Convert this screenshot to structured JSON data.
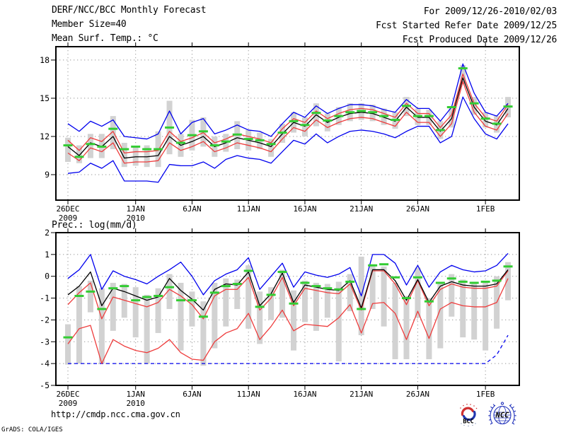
{
  "header": {
    "left": [
      "DERF/NCC/BCC Monthly Forecast",
      "Member Size=40"
    ],
    "right": [
      "For 2009/12/26-2010/02/03",
      "Fcst Started Refer Date 2009/12/25",
      "Fcst Produced Date 2009/12/26"
    ]
  },
  "footer": {
    "url": "http://cmdp.ncc.cma.gov.cn",
    "credit": "GrADS: COLA/IGES"
  },
  "logos": {
    "bcc_label": "BCC",
    "ncc_label": "NCC"
  },
  "colors": {
    "ensemble_max_min": "#0000ee",
    "spread_band": "#ee3c3c",
    "ensemble_mean": "#000000",
    "observation_dash": "#33cc33",
    "member_bar": "#d2d2d2",
    "grid": "#999999"
  },
  "chart_data": [
    {
      "name": "mean-surface-temperature",
      "type": "line",
      "label": "Mean Surf. Temp.: °C",
      "unit": "°C",
      "x": {
        "days": 40,
        "start": "26DEC2009",
        "end": "3FEB2010",
        "ticks": [
          {
            "day": 0,
            "label": "26DEC",
            "sublabel": "2009"
          },
          {
            "day": 6,
            "label": "1JAN",
            "sublabel": "2010"
          },
          {
            "day": 11,
            "label": "6JAN"
          },
          {
            "day": 16,
            "label": "11JAN"
          },
          {
            "day": 21,
            "label": "16JAN"
          },
          {
            "day": 26,
            "label": "21JAN"
          },
          {
            "day": 31,
            "label": "26JAN"
          },
          {
            "day": 37,
            "label": "1FEB"
          }
        ]
      },
      "y": {
        "min": 7,
        "max": 19.05,
        "tick_labels": [
          18,
          15,
          12,
          9
        ],
        "grid": [
          18,
          15,
          12,
          9
        ]
      },
      "bars": {
        "name": "member-spread-bar",
        "ranges": [
          [
            10.0,
            11.9
          ],
          [
            9.9,
            11.3
          ],
          [
            10.3,
            12.2
          ],
          [
            10.3,
            12.2
          ],
          [
            11.0,
            13.6
          ],
          [
            9.6,
            11.5
          ],
          [
            9.7,
            11.2
          ],
          [
            9.6,
            11.3
          ],
          [
            9.6,
            12.4
          ],
          [
            10.6,
            14.8
          ],
          [
            10.4,
            12.2
          ],
          [
            10.9,
            13.3
          ],
          [
            11.2,
            13.5
          ],
          [
            10.4,
            12.0
          ],
          [
            10.8,
            12.2
          ],
          [
            11.0,
            13.2
          ],
          [
            10.9,
            12.5
          ],
          [
            11.0,
            12.3
          ],
          [
            10.4,
            11.8
          ],
          [
            11.5,
            13.0
          ],
          [
            12.3,
            13.9
          ],
          [
            12.0,
            13.5
          ],
          [
            12.8,
            14.6
          ],
          [
            12.4,
            13.8
          ],
          [
            12.9,
            14.3
          ],
          [
            13.2,
            14.6
          ],
          [
            13.3,
            14.6
          ],
          [
            13.2,
            14.5
          ],
          [
            12.9,
            14.2
          ],
          [
            12.6,
            13.9
          ],
          [
            13.6,
            15.1
          ],
          [
            12.9,
            14.2
          ],
          [
            12.9,
            14.1
          ],
          [
            11.8,
            13.2
          ],
          [
            12.7,
            14.2
          ],
          [
            16.1,
            17.6
          ],
          [
            13.7,
            15.1
          ],
          [
            12.7,
            13.9
          ],
          [
            12.3,
            13.6
          ],
          [
            13.5,
            15.1
          ]
        ]
      },
      "series": [
        {
          "name": "ensemble-max",
          "color": "#0000ee",
          "style": "solid",
          "values": [
            13.0,
            12.4,
            13.2,
            12.8,
            13.3,
            12.0,
            11.9,
            11.8,
            12.2,
            14.0,
            12.2,
            13.1,
            13.4,
            12.2,
            12.5,
            12.9,
            12.5,
            12.4,
            12.0,
            13.0,
            13.9,
            13.5,
            14.4,
            13.8,
            14.2,
            14.5,
            14.5,
            14.4,
            14.1,
            13.9,
            14.9,
            14.2,
            14.2,
            13.2,
            14.3,
            17.7,
            15.4,
            13.9,
            13.6,
            14.6
          ]
        },
        {
          "name": "ensemble-min",
          "color": "#0000ee",
          "style": "solid",
          "values": [
            9.1,
            9.2,
            9.9,
            9.5,
            10.1,
            8.5,
            8.5,
            8.5,
            8.4,
            9.8,
            9.7,
            9.7,
            10.0,
            9.5,
            10.2,
            10.5,
            10.3,
            10.2,
            9.9,
            10.8,
            11.7,
            11.4,
            12.2,
            11.5,
            12.0,
            12.4,
            12.5,
            12.4,
            12.2,
            11.9,
            12.4,
            12.8,
            12.8,
            11.5,
            12.0,
            15.1,
            13.4,
            12.2,
            11.8,
            13.0
          ]
        },
        {
          "name": "upper-spread",
          "color": "#ee3c3c",
          "style": "solid",
          "values": [
            11.7,
            10.9,
            11.9,
            11.6,
            12.4,
            10.7,
            10.8,
            10.8,
            10.9,
            12.4,
            11.6,
            11.9,
            12.3,
            11.5,
            11.8,
            12.2,
            12.0,
            11.8,
            11.5,
            12.6,
            13.4,
            13.1,
            14.0,
            13.4,
            13.8,
            14.1,
            14.2,
            14.1,
            13.8,
            13.5,
            14.6,
            13.8,
            13.8,
            12.7,
            13.7,
            16.9,
            14.6,
            13.5,
            13.2,
            14.5
          ]
        },
        {
          "name": "lower-spread",
          "color": "#ee3c3c",
          "style": "solid",
          "values": [
            10.7,
            10.1,
            11.1,
            10.8,
            11.5,
            9.9,
            10.0,
            10.0,
            10.1,
            11.5,
            10.9,
            11.2,
            11.6,
            10.8,
            11.1,
            11.5,
            11.3,
            11.1,
            10.8,
            11.8,
            12.7,
            12.4,
            13.3,
            12.7,
            13.1,
            13.4,
            13.5,
            13.4,
            13.1,
            12.8,
            13.9,
            13.1,
            13.1,
            12.0,
            13.0,
            16.3,
            13.9,
            12.8,
            12.5,
            13.8
          ]
        },
        {
          "name": "ensemble-mean",
          "color": "#000000",
          "style": "solid",
          "values": [
            11.2,
            10.5,
            11.5,
            11.2,
            12.0,
            10.3,
            10.4,
            10.4,
            10.5,
            12.0,
            11.3,
            11.6,
            12.0,
            11.2,
            11.5,
            11.9,
            11.7,
            11.5,
            11.2,
            12.2,
            13.1,
            12.8,
            13.7,
            13.1,
            13.5,
            13.8,
            13.9,
            13.8,
            13.5,
            13.2,
            14.3,
            13.5,
            13.5,
            12.4,
            13.4,
            16.6,
            14.3,
            13.2,
            12.9,
            14.2
          ]
        }
      ],
      "dashes": {
        "name": "observation-dash",
        "color": "#33cc33",
        "values": [
          11.3,
          10.4,
          11.4,
          11.2,
          12.6,
          11.0,
          11.2,
          11.0,
          11.0,
          12.7,
          11.5,
          12.1,
          12.4,
          11.3,
          11.6,
          12.15,
          11.8,
          11.7,
          11.4,
          12.3,
          13.2,
          12.9,
          13.85,
          13.25,
          13.6,
          13.9,
          14.0,
          13.9,
          13.6,
          13.3,
          14.4,
          13.6,
          13.6,
          12.5,
          14.3,
          17.35,
          14.6,
          13.4,
          13.0,
          14.35
        ]
      }
    },
    {
      "name": "precipitation",
      "type": "line",
      "label": "Prec.: log(mm/d)",
      "unit": "log(mm/d)",
      "x": {
        "days": 40,
        "start": "26DEC2009",
        "end": "3FEB2010",
        "ticks": [
          {
            "day": 0,
            "label": "26DEC",
            "sublabel": "2009"
          },
          {
            "day": 6,
            "label": "1JAN",
            "sublabel": "2010"
          },
          {
            "day": 11,
            "label": "6JAN"
          },
          {
            "day": 16,
            "label": "11JAN"
          },
          {
            "day": 21,
            "label": "16JAN"
          },
          {
            "day": 26,
            "label": "21JAN"
          },
          {
            "day": 31,
            "label": "26JAN"
          },
          {
            "day": 37,
            "label": "1FEB"
          }
        ]
      },
      "y": {
        "min": -5,
        "max": 2,
        "tick_labels": [
          2,
          1,
          0,
          -1,
          -2,
          -3,
          -4,
          -5
        ],
        "grid": [
          1,
          0,
          -1,
          -2,
          -3,
          -4
        ]
      },
      "bars": {
        "name": "member-spread-bar",
        "ranges": [
          [
            -4.05,
            -2.2
          ],
          [
            -4.0,
            -0.45
          ],
          [
            -1.65,
            -0.2
          ],
          [
            -4.0,
            -0.55
          ],
          [
            -2.5,
            -0.3
          ],
          [
            -1.9,
            -0.35
          ],
          [
            -2.8,
            -0.5
          ],
          [
            -4.0,
            -0.85
          ],
          [
            -2.6,
            -0.55
          ],
          [
            -1.5,
            0.1
          ],
          [
            -3.4,
            -0.3
          ],
          [
            -2.3,
            -0.7
          ],
          [
            -4.1,
            -1.15
          ],
          [
            -3.3,
            -0.3
          ],
          [
            -2.3,
            -0.1
          ],
          [
            -1.5,
            -0.15
          ],
          [
            -2.4,
            0.5
          ],
          [
            -3.1,
            -0.7
          ],
          [
            -2.0,
            -0.5
          ],
          [
            -1.9,
            0.3
          ],
          [
            -3.4,
            -0.65
          ],
          [
            -2.1,
            -0.2
          ],
          [
            -2.5,
            -0.3
          ],
          [
            -1.9,
            -0.35
          ],
          [
            -3.9,
            -0.25
          ],
          [
            -1.6,
            0.1
          ],
          [
            -2.7,
            0.9
          ],
          [
            -1.5,
            0.55
          ],
          [
            -2.3,
            0.45
          ],
          [
            -3.8,
            -0.3
          ],
          [
            -3.8,
            -0.9
          ],
          [
            -1.9,
            0.4
          ],
          [
            -3.8,
            -1.0
          ],
          [
            -3.3,
            -0.35
          ],
          [
            -1.85,
            0.1
          ],
          [
            -2.8,
            -0.15
          ],
          [
            -2.9,
            -0.25
          ],
          [
            -3.4,
            -0.3
          ],
          [
            -2.4,
            0.0
          ],
          [
            -1.1,
            0.65
          ]
        ]
      },
      "series": [
        {
          "name": "ensemble-max",
          "color": "#0000ee",
          "style": "solid",
          "values": [
            -0.1,
            0.3,
            1.0,
            -0.6,
            0.25,
            0.0,
            -0.15,
            -0.35,
            0.0,
            0.3,
            0.65,
            0.0,
            -0.85,
            -0.2,
            0.1,
            0.3,
            0.85,
            -0.6,
            0.0,
            0.6,
            -0.5,
            0.2,
            0.05,
            -0.05,
            0.1,
            0.4,
            -0.9,
            1.0,
            1.0,
            0.6,
            -0.4,
            0.5,
            -0.5,
            0.2,
            0.5,
            0.3,
            0.2,
            0.25,
            0.5,
            1.05
          ]
        },
        {
          "name": "ensemble-min",
          "color": "#0000ee",
          "style": "dashed",
          "values": [
            -4.0,
            -4.0,
            -4.0,
            -4.0,
            -4.0,
            -4.0,
            -4.0,
            -4.0,
            -4.0,
            -4.0,
            -4.0,
            -4.0,
            -4.0,
            -4.0,
            -4.0,
            -4.0,
            -4.0,
            -4.0,
            -4.0,
            -4.0,
            -4.0,
            -4.0,
            -4.0,
            -4.0,
            -4.0,
            -4.0,
            -4.0,
            -4.0,
            -4.0,
            -4.0,
            -4.0,
            -4.0,
            -4.0,
            -4.0,
            -4.0,
            -4.0,
            -4.0,
            -4.0,
            -3.6,
            -2.7
          ]
        },
        {
          "name": "upper-spread",
          "color": "#ee3c3c",
          "style": "solid",
          "values": [
            -1.3,
            -0.75,
            -0.3,
            -1.95,
            -0.95,
            -1.1,
            -1.25,
            -1.4,
            -1.2,
            -0.6,
            -0.9,
            -1.3,
            -1.95,
            -0.9,
            -0.6,
            -0.6,
            -0.05,
            -1.55,
            -1.0,
            -0.05,
            -1.35,
            -0.55,
            -0.65,
            -0.75,
            -0.8,
            -0.35,
            -1.55,
            0.25,
            0.25,
            -0.35,
            -1.3,
            -0.2,
            -1.35,
            -0.6,
            -0.35,
            -0.5,
            -0.55,
            -0.55,
            -0.45,
            0.25
          ]
        },
        {
          "name": "lower-spread",
          "color": "#ee3c3c",
          "style": "solid",
          "values": [
            -3.1,
            -2.4,
            -2.25,
            -4.0,
            -2.9,
            -3.2,
            -3.4,
            -3.5,
            -3.3,
            -2.9,
            -3.5,
            -3.8,
            -3.85,
            -3.0,
            -2.6,
            -2.4,
            -1.7,
            -2.9,
            -2.3,
            -1.55,
            -2.5,
            -2.2,
            -2.25,
            -2.3,
            -1.9,
            -1.3,
            -2.6,
            -1.25,
            -1.2,
            -1.7,
            -2.9,
            -1.6,
            -2.85,
            -1.5,
            -1.2,
            -1.35,
            -1.4,
            -1.4,
            -1.2,
            -0.1
          ]
        },
        {
          "name": "ensemble-mean",
          "color": "#000000",
          "style": "solid",
          "values": [
            -0.85,
            -0.45,
            0.2,
            -1.35,
            -0.55,
            -0.7,
            -0.9,
            -1.1,
            -0.95,
            -0.1,
            -0.65,
            -1.05,
            -1.55,
            -0.6,
            -0.35,
            -0.4,
            0.2,
            -1.35,
            -0.8,
            0.15,
            -1.2,
            -0.4,
            -0.5,
            -0.6,
            -0.65,
            -0.2,
            -1.45,
            0.3,
            0.3,
            -0.2,
            -1.1,
            -0.15,
            -1.2,
            -0.45,
            -0.25,
            -0.4,
            -0.45,
            -0.45,
            -0.35,
            0.3
          ]
        }
      ],
      "dashes": {
        "name": "observation-dash",
        "color": "#33cc33",
        "values": [
          -2.8,
          -0.9,
          -0.7,
          -1.5,
          -0.55,
          -0.45,
          -1.1,
          -0.95,
          -0.9,
          -0.5,
          -1.1,
          -1.1,
          -1.85,
          -0.75,
          -0.45,
          -0.35,
          0.25,
          -1.4,
          -0.85,
          0.2,
          -1.25,
          -0.3,
          -0.45,
          -0.55,
          -0.6,
          -0.25,
          -1.5,
          0.5,
          0.55,
          -0.05,
          -1.0,
          -0.05,
          -1.15,
          -0.3,
          -0.1,
          -0.25,
          -0.3,
          -0.25,
          -0.2,
          0.45
        ]
      }
    }
  ]
}
